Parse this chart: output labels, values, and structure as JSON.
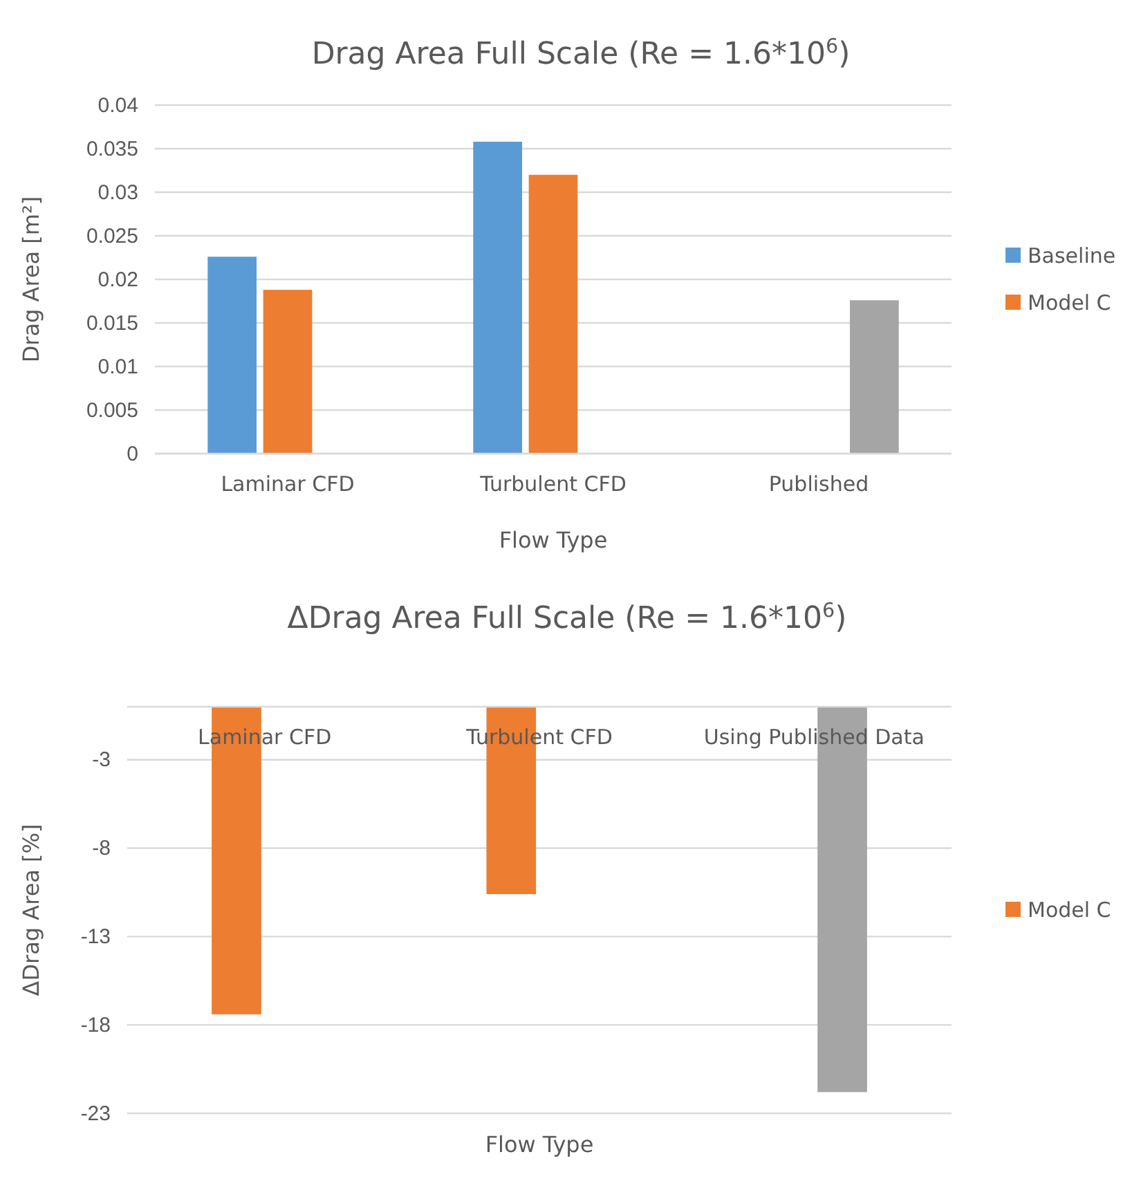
{
  "chart_data": [
    {
      "type": "bar",
      "title": "Drag Area Full Scale (Re = 1.6*10$^{6}$)",
      "xlabel": "Flow Type",
      "ylabel": "Drag Area [m²]",
      "categories": [
        "Laminar CFD",
        "Turbulent CFD",
        "Published"
      ],
      "series": [
        {
          "name": "Baseline",
          "color": "#5b9bd5",
          "values": [
            0.0226,
            0.0358,
            null
          ]
        },
        {
          "name": "Model C",
          "color": "#ed7d31",
          "values": [
            0.0188,
            0.032,
            null
          ]
        },
        {
          "color": "#a5a5a5",
          "values": [
            null,
            null,
            0.0176
          ]
        }
      ],
      "ylim": [
        0,
        0.04
      ],
      "yticks": [
        0,
        0.005,
        0.01,
        0.015,
        0.02,
        0.025,
        0.03,
        0.035,
        0.04
      ],
      "grid": "y",
      "legend": "right"
    },
    {
      "type": "bar",
      "title": "ΔDrag Area Full Scale (Re = 1.6*10$^{6}$)",
      "xlabel": "Flow Type",
      "ylabel": "ΔDrag Area [%]",
      "categories": [
        "Laminar CFD",
        "Turbulent CFD",
        "Using Published Data"
      ],
      "series": [
        {
          "name": "Model C",
          "color": "#ed7d31",
          "values": [
            -17.4,
            -10.6,
            null
          ]
        },
        {
          "color": "#a5a5a5",
          "values": [
            null,
            null,
            -21.8
          ]
        }
      ],
      "ylim": [
        -23,
        0
      ],
      "yticks": [
        -3,
        -8,
        -13,
        -18,
        -23
      ],
      "grid": "y",
      "legend": "right"
    }
  ]
}
